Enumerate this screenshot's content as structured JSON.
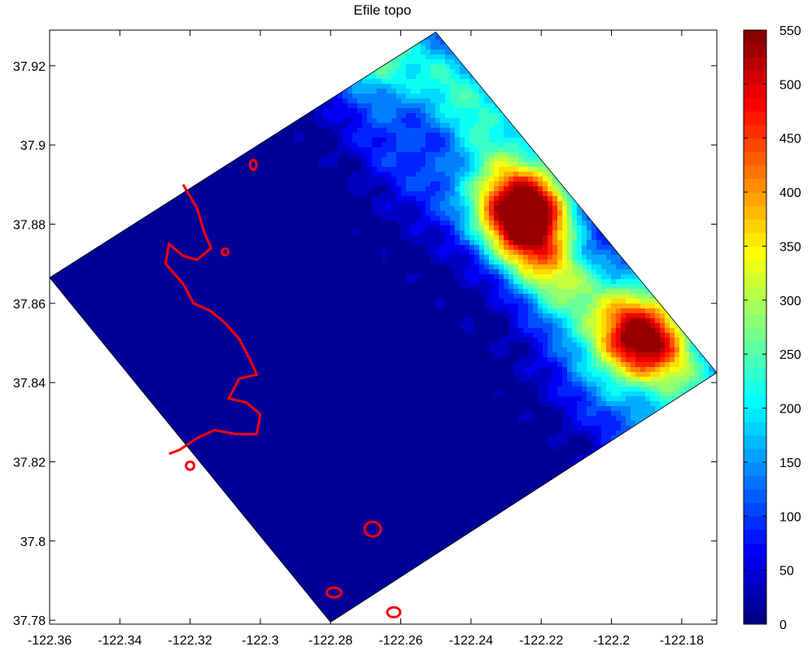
{
  "chart_data": {
    "type": "heatmap",
    "title": "Efile topo",
    "xlabel": "",
    "ylabel": "",
    "xlim": [
      -122.36,
      -122.17
    ],
    "ylim": [
      37.779,
      37.929
    ],
    "x_ticks": [
      -122.36,
      -122.34,
      -122.32,
      -122.3,
      -122.28,
      -122.26,
      -122.24,
      -122.22,
      -122.2,
      -122.18
    ],
    "x_tick_labels": [
      "-122.36",
      "-122.34",
      "-122.32",
      "-122.3",
      "-122.28",
      "-122.26",
      "-122.24",
      "-122.22",
      "-122.2",
      "-122.18"
    ],
    "y_ticks": [
      37.78,
      37.8,
      37.82,
      37.84,
      37.86,
      37.88,
      37.9,
      37.92
    ],
    "y_tick_labels": [
      "37.78",
      "37.8",
      "37.82",
      "37.84",
      "37.86",
      "37.88",
      "37.9",
      "37.92"
    ],
    "colorbar": {
      "colormap": "jet",
      "range": [
        0,
        550
      ],
      "ticks": [
        0,
        50,
        100,
        150,
        200,
        250,
        300,
        350,
        400,
        450,
        500,
        550
      ],
      "tick_labels": [
        "0",
        "50",
        "100",
        "150",
        "200",
        "250",
        "300",
        "350",
        "400",
        "450",
        "500",
        "550"
      ]
    },
    "domain_corners": [
      [
        -122.36,
        37.8665
      ],
      [
        -122.25,
        37.9285
      ],
      [
        -122.17,
        37.8425
      ],
      [
        -122.28,
        37.7795
      ]
    ],
    "peaks": [
      {
        "lon": -122.223,
        "lat": 37.884,
        "value": 545
      },
      {
        "lon": -122.193,
        "lat": 37.85,
        "value": 500
      }
    ],
    "coastline_color": "#ff0000",
    "grid": false
  }
}
